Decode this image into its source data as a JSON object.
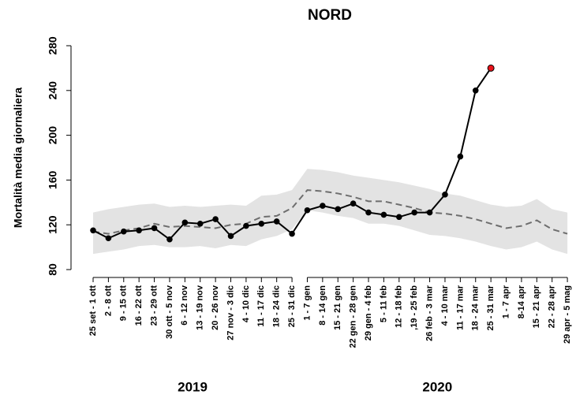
{
  "chart_data": {
    "type": "line",
    "title": "NORD",
    "y_label": "Mortalità media giornaliera",
    "ylim": [
      80,
      280
    ],
    "yticks": [
      80,
      120,
      160,
      200,
      240,
      280
    ],
    "groups": [
      {
        "label": "2019",
        "categories": [
          "25 set - 1 ott",
          "2 - 8 ott",
          "9 - 15 ott",
          "16 - 22 ott",
          "23 - 29 ott",
          "30 ott - 5 nov",
          "6 - 12 nov",
          "13 - 19 nov",
          "20 - 26 nov",
          "27 nov - 3 dic",
          "4 - 10 dic",
          "11 - 17 dic",
          "18 - 24 dic",
          "25 - 31 dic"
        ]
      },
      {
        "label": "2020",
        "categories": [
          "1 - 7 gen",
          "8 - 14 gen",
          "15 - 21 gen",
          "22 gen - 28 gen",
          "29 gen - 4 feb",
          "5 - 11 feb",
          "12 - 18 feb",
          ",19 - 25 feb",
          "26 feb - 3 mar",
          "4 - 10 mar",
          "11 - 17 mar",
          "18 - 24 mar",
          "25 - 31 mar",
          "1 - 7 apr",
          "8-14 apr",
          "15 - 21 apr",
          "22 - 28 apr",
          "29 apr - 5 mag"
        ]
      }
    ],
    "band": {
      "color": "#e3e3e3",
      "upper": [
        131,
        134,
        136,
        138,
        139,
        136,
        137,
        136,
        137,
        138,
        137,
        146,
        147,
        151,
        170,
        169,
        167,
        164,
        162,
        160,
        158,
        155,
        152,
        148,
        146,
        142,
        138,
        136,
        137,
        143,
        134,
        131
      ],
      "lower": [
        94,
        96,
        98,
        101,
        102,
        100,
        100,
        101,
        99,
        102,
        101,
        107,
        110,
        116,
        133,
        131,
        128,
        126,
        121,
        121,
        119,
        115,
        111,
        110,
        108,
        105,
        101,
        98,
        100,
        105,
        98,
        94
      ]
    },
    "expected": {
      "color": "#6e6e6e",
      "values": [
        114,
        112,
        115,
        117,
        121,
        118,
        119,
        118,
        117,
        120,
        121,
        127,
        128,
        135,
        151,
        150,
        148,
        145,
        141,
        141,
        138,
        135,
        131,
        130,
        128,
        125,
        121,
        117,
        119,
        124,
        116,
        112
      ]
    },
    "observed": {
      "color": "#000000",
      "highlight_color": "#e8131b",
      "values": [
        115,
        108,
        114,
        115,
        117,
        107,
        122,
        121,
        125,
        110,
        119,
        121,
        123,
        112,
        133,
        137,
        134,
        139,
        131,
        129,
        127,
        131,
        131,
        147,
        181,
        240,
        260,
        null,
        null,
        null,
        null,
        null
      ]
    }
  }
}
